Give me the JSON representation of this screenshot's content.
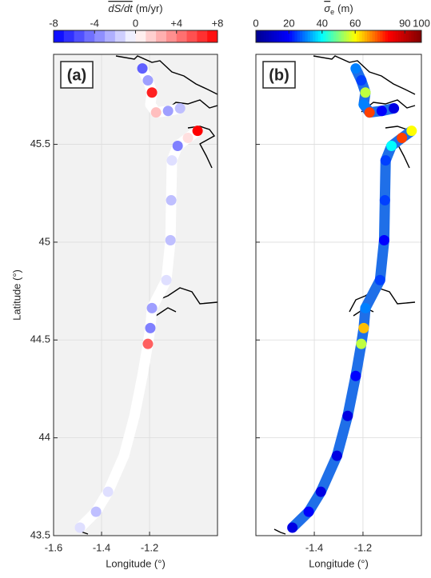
{
  "chart_data": [
    {
      "type": "track",
      "panel_label": "(a)",
      "colorbar_label": "dS/dt",
      "colorbar_unit": "(m/yr)",
      "colormap": [
        "#0000ff",
        "#ffffff",
        "#ff0000"
      ],
      "clim": [
        -8,
        8
      ],
      "cticks": [
        -8,
        -4,
        0,
        {
          "value": 4,
          "label": "+4"
        },
        {
          "value": 8,
          "label": "+8"
        }
      ],
      "xlabel": "Longitude (°)",
      "ylabel": "Latitude (°)",
      "background": "#f2f2f2",
      "track_color": "#ffffff",
      "xlim": [
        -1.6,
        -0.917
      ],
      "xticks": [
        -1.6,
        -1.4,
        -1.2
      ],
      "ylim": [
        43.5,
        45.96
      ],
      "yticks": [
        43.5,
        44,
        44.5,
        45,
        45.5
      ],
      "grid": true,
      "x": [
        -1.23,
        -1.207,
        -1.19,
        -1.197,
        -1.173,
        -1.123,
        -1.073,
        null,
        -1.0,
        -1.04,
        -1.083,
        -1.107,
        -1.11,
        -1.113,
        -1.13,
        -1.19,
        -1.197,
        -1.207,
        -1.23,
        -1.263,
        -1.307,
        -1.373,
        -1.423,
        -1.49
      ],
      "y": [
        45.888,
        45.827,
        45.765,
        45.704,
        45.663,
        45.671,
        45.684,
        null,
        45.569,
        45.533,
        45.492,
        45.418,
        45.214,
        45.01,
        44.806,
        44.663,
        44.561,
        44.48,
        44.316,
        44.112,
        43.908,
        43.724,
        43.622,
        43.541
      ],
      "values": [
        -5,
        -3,
        7,
        0,
        2,
        -3,
        -2,
        null,
        8,
        1,
        -4,
        -1,
        -2,
        -2,
        -1,
        -3,
        -4,
        5,
        0,
        0,
        0,
        -1,
        -2,
        -1
      ]
    },
    {
      "type": "track",
      "panel_label": "(b)",
      "colorbar_label": "σ",
      "colorbar_sub": "e",
      "colorbar_unit": "(m)",
      "colormap": [
        "#00008f",
        "#0000ff",
        "#00ffff",
        "#ffff00",
        "#ff0000",
        "#800000"
      ],
      "clim": [
        0,
        100
      ],
      "cticks": [
        0,
        20,
        40,
        60,
        90,
        100
      ],
      "xlabel": "Longitude (°)",
      "background": "#ffffff",
      "track_color": "#1f6fe8",
      "xlim": [
        -1.64,
        -0.96
      ],
      "xticks": [
        -1.4,
        -1.2
      ],
      "grid": true,
      "x": [
        -1.23,
        -1.207,
        -1.19,
        -1.197,
        -1.173,
        -1.123,
        -1.073,
        null,
        -1.0,
        -1.04,
        -1.083,
        -1.107,
        -1.11,
        -1.113,
        -1.13,
        -1.19,
        -1.197,
        -1.207,
        -1.23,
        -1.263,
        -1.307,
        -1.373,
        -1.423,
        -1.49
      ],
      "y": [
        45.888,
        45.827,
        45.765,
        45.704,
        45.663,
        45.671,
        45.684,
        null,
        45.569,
        45.533,
        45.492,
        45.418,
        45.214,
        45.01,
        44.806,
        44.663,
        44.561,
        44.48,
        44.316,
        44.112,
        43.908,
        43.724,
        43.622,
        43.541
      ],
      "values": [
        30,
        25,
        55,
        30,
        75,
        20,
        15,
        null,
        60,
        75,
        40,
        25,
        25,
        20,
        25,
        30,
        65,
        55,
        20,
        15,
        15,
        15,
        20,
        15
      ]
    }
  ]
}
